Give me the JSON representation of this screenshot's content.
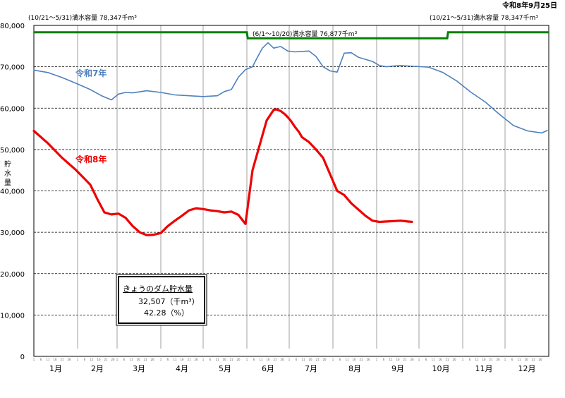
{
  "header": {
    "date": "令和8年9月25日"
  },
  "chart_data": {
    "type": "line",
    "ylabel": "貯水量",
    "ylim": [
      0,
      80000
    ],
    "yticks": [
      "0",
      "10,000",
      "20,000",
      "30,000",
      "40,000",
      "50,000",
      "60,000",
      "70,000",
      "80,000"
    ],
    "months": [
      "1月",
      "2月",
      "3月",
      "4月",
      "5月",
      "6月",
      "7月",
      "8月",
      "9月",
      "10月",
      "11月",
      "12月"
    ],
    "day_ticks": [
      "1",
      "6",
      "11",
      "16",
      "21",
      "26"
    ],
    "capacity": {
      "color": "#008000",
      "periods": [
        {
          "label": "(10/21～5/31)満水容量 78,347千m³",
          "value": 78347
        },
        {
          "label": "(6/1～10/20)満水容量 76,877千m³",
          "value": 76877
        },
        {
          "label": "(10/21～5/31)満水容量 78,347千m³",
          "value": 78347
        }
      ]
    },
    "series": [
      {
        "name": "令和7年",
        "color": "#4f81bd",
        "x": [
          0,
          10,
          20,
          30,
          40,
          48,
          55,
          60,
          65,
          70,
          80,
          90,
          100,
          110,
          120,
          130,
          135,
          140,
          145,
          150,
          152,
          155,
          158,
          162,
          166,
          170,
          175,
          180,
          185,
          190,
          195,
          200,
          205,
          210,
          215,
          220,
          225,
          230,
          235,
          240,
          245,
          250,
          255,
          260,
          265,
          270,
          280,
          290,
          300,
          310,
          320,
          330,
          340,
          350,
          360,
          364
        ],
        "values": [
          69200,
          68600,
          67400,
          66000,
          64500,
          63000,
          62000,
          63400,
          63800,
          63700,
          64200,
          63800,
          63200,
          63000,
          62800,
          63000,
          64000,
          64500,
          67500,
          69300,
          69600,
          70000,
          72000,
          74500,
          75800,
          74500,
          74900,
          73800,
          73600,
          73700,
          73800,
          72500,
          70000,
          69000,
          68700,
          73300,
          73400,
          72300,
          71800,
          71300,
          70300,
          70000,
          70200,
          70300,
          70200,
          70100,
          69900,
          68600,
          66500,
          63800,
          61500,
          58500,
          55800,
          54500,
          54000,
          54600
        ]
      },
      {
        "name": "令和8年",
        "color": "#ee0000",
        "x": [
          0,
          10,
          20,
          30,
          40,
          45,
          50,
          55,
          60,
          65,
          70,
          75,
          80,
          85,
          90,
          95,
          100,
          105,
          110,
          115,
          120,
          125,
          130,
          135,
          140,
          145,
          150,
          155,
          160,
          165,
          170,
          172,
          175,
          178,
          180,
          182,
          185,
          188,
          190,
          195,
          200,
          205,
          210,
          215,
          220,
          225,
          230,
          235,
          240,
          245,
          250,
          255,
          260,
          265,
          268
        ],
        "values": [
          54500,
          51500,
          48000,
          45000,
          41500,
          38000,
          34800,
          34300,
          34500,
          33500,
          31500,
          30000,
          29300,
          29400,
          29800,
          31500,
          32800,
          34000,
          35300,
          35800,
          35600,
          35300,
          35100,
          34800,
          35000,
          34200,
          32000,
          45000,
          51000,
          57000,
          59600,
          59700,
          59300,
          58500,
          57800,
          57000,
          55500,
          54200,
          53000,
          51800,
          50000,
          48000,
          44000,
          40000,
          39000,
          37000,
          35500,
          34000,
          32800,
          32500,
          32600,
          32700,
          32800,
          32600,
          32507
        ]
      }
    ]
  },
  "info_box": {
    "title": "きょうのダム貯水量",
    "amount": "32,507（千m³）",
    "ratio": "42.28（%）"
  }
}
